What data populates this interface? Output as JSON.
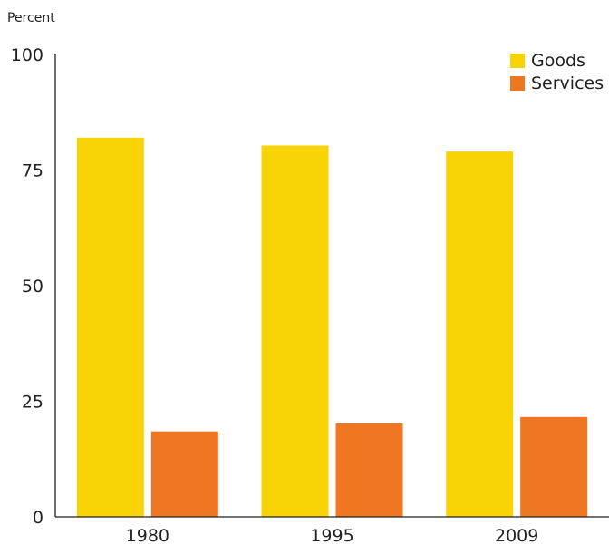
{
  "chart_data": {
    "type": "bar",
    "ylabel": "Percent",
    "categories": [
      "1980",
      "1995",
      "2009"
    ],
    "series": [
      {
        "name": "Goods",
        "color": "#f8d305",
        "values": [
          82,
          80.3,
          79
        ]
      },
      {
        "name": "Services",
        "color": "#f07722",
        "values": [
          18.5,
          20.2,
          21.6
        ]
      }
    ],
    "ylim": [
      0,
      100
    ],
    "yticks": [
      0,
      25,
      50,
      75,
      100
    ],
    "grid": false,
    "legend": "top-right"
  }
}
